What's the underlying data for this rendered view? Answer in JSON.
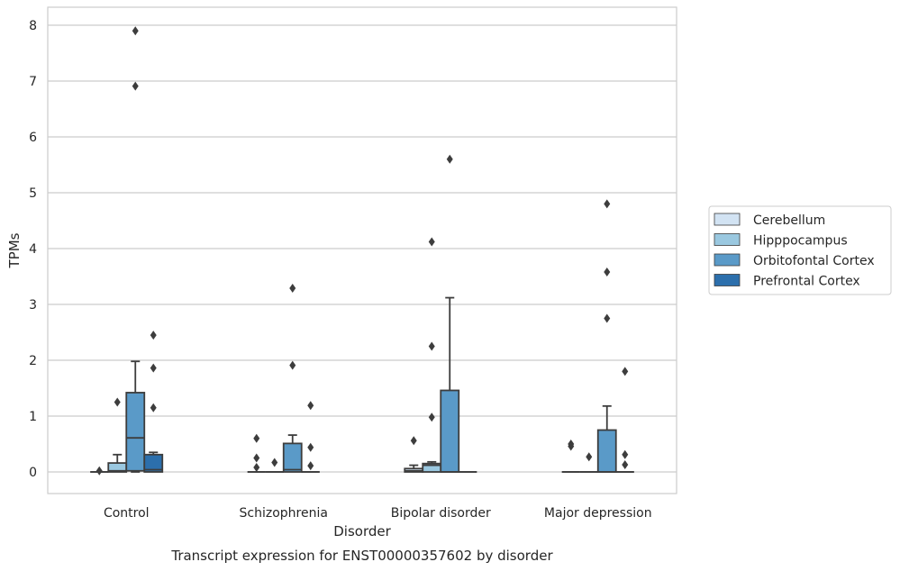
{
  "chart_data": {
    "type": "box",
    "title": "",
    "caption": "Transcript expression for ENST00000357602 by disorder",
    "xlabel": "Disorder",
    "ylabel": "TPMs",
    "ylim": [
      -0.4,
      8.3
    ],
    "yticks": [
      "0",
      "1",
      "2",
      "3",
      "4",
      "5",
      "6",
      "7",
      "8"
    ],
    "grid": "horizontal",
    "legend_position": "right",
    "categories": [
      "Control",
      "Schizophrenia",
      "Bipolar disorder",
      "Major depression"
    ],
    "series": [
      {
        "name": "Cerebellum",
        "color": "#d2e3f3",
        "boxes": [
          {
            "whislo": 0,
            "q1": 0,
            "med": 0,
            "q3": 0,
            "whishi": 0,
            "fliers": [
              0.02
            ]
          },
          {
            "whislo": 0,
            "q1": 0,
            "med": 0,
            "q3": 0,
            "whishi": 0,
            "fliers": [
              0.6,
              0.25,
              0.08
            ]
          },
          {
            "whislo": 0,
            "q1": 0,
            "med": 0.02,
            "q3": 0.06,
            "whishi": 0.12,
            "fliers": [
              0.56
            ]
          },
          {
            "whislo": 0,
            "q1": 0,
            "med": 0,
            "q3": 0,
            "whishi": 0,
            "fliers": [
              0.5,
              0.46
            ]
          }
        ]
      },
      {
        "name": "Hipppocampus",
        "color": "#9ac8e0",
        "boxes": [
          {
            "whislo": 0,
            "q1": 0,
            "med": 0.02,
            "q3": 0.16,
            "whishi": 0.31,
            "fliers": [
              1.25
            ]
          },
          {
            "whislo": 0,
            "q1": 0,
            "med": 0,
            "q3": 0,
            "whishi": 0,
            "fliers": [
              0.17
            ]
          },
          {
            "whislo": 0,
            "q1": 0,
            "med": 0.12,
            "q3": 0.15,
            "whishi": 0.18,
            "fliers": [
              4.12,
              2.25,
              0.98
            ]
          },
          {
            "whislo": 0,
            "q1": 0,
            "med": 0,
            "q3": 0,
            "whishi": 0,
            "fliers": [
              0.27
            ]
          }
        ]
      },
      {
        "name": "Orbitofontal Cortex",
        "color": "#5a9ac8",
        "boxes": [
          {
            "whislo": 0,
            "q1": 0.02,
            "med": 0.61,
            "q3": 1.42,
            "whishi": 1.98,
            "fliers": [
              7.9,
              6.91
            ]
          },
          {
            "whislo": 0,
            "q1": 0,
            "med": 0.04,
            "q3": 0.51,
            "whishi": 0.66,
            "fliers": [
              3.29,
              1.91
            ]
          },
          {
            "whislo": 0,
            "q1": 0,
            "med": 0,
            "q3": 1.46,
            "whishi": 3.12,
            "fliers": [
              5.6
            ]
          },
          {
            "whislo": 0,
            "q1": 0,
            "med": 0,
            "q3": 0.75,
            "whishi": 1.18,
            "fliers": [
              4.8,
              3.58,
              2.75
            ]
          }
        ]
      },
      {
        "name": "Prefrontal Cortex",
        "color": "#2c6fac",
        "boxes": [
          {
            "whislo": 0,
            "q1": 0,
            "med": 0.04,
            "q3": 0.31,
            "whishi": 0.35,
            "fliers": [
              2.45,
              1.86,
              1.15
            ]
          },
          {
            "whislo": 0,
            "q1": 0,
            "med": 0,
            "q3": 0,
            "whishi": 0,
            "fliers": [
              1.19,
              0.44,
              0.11
            ]
          },
          {
            "whislo": 0,
            "q1": 0,
            "med": 0,
            "q3": 0,
            "whishi": 0,
            "fliers": []
          },
          {
            "whislo": 0,
            "q1": 0,
            "med": 0,
            "q3": 0,
            "whishi": 0,
            "fliers": [
              1.8,
              0.31,
              0.13
            ]
          }
        ]
      }
    ],
    "colors": {
      "line": "#3d3d3d",
      "grid": "#cccccc",
      "frame": "#cccccc",
      "text": "#262626"
    }
  }
}
